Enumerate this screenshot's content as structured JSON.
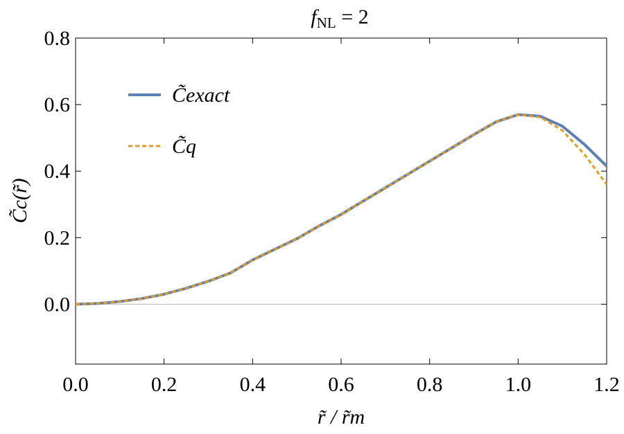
{
  "chart_data": {
    "type": "line",
    "title": [
      "f",
      "NL",
      " = 2"
    ],
    "xlabel": "r̃ / r̃m",
    "ylabel": "C̃c(r̃)",
    "x": [
      0,
      0.05,
      0.1,
      0.15,
      0.2,
      0.25,
      0.3,
      0.35,
      0.4,
      0.45,
      0.5,
      0.55,
      0.6,
      0.65,
      0.7,
      0.75,
      0.8,
      0.85,
      0.9,
      0.95,
      1.0,
      1.05,
      1.1,
      1.15,
      1.2
    ],
    "series": [
      {
        "name": "C̃exact",
        "color": "#5e81b5",
        "dash": false,
        "values": [
          0,
          0.002,
          0.008,
          0.017,
          0.03,
          0.048,
          0.069,
          0.094,
          0.133,
          0.165,
          0.197,
          0.235,
          0.27,
          0.31,
          0.35,
          0.39,
          0.43,
          0.47,
          0.51,
          0.548,
          0.57,
          0.565,
          0.535,
          0.48,
          0.415
        ]
      },
      {
        "name": "C̃q",
        "color": "#e19c24",
        "dash": true,
        "values": [
          0,
          0.002,
          0.008,
          0.017,
          0.03,
          0.048,
          0.069,
          0.094,
          0.133,
          0.165,
          0.197,
          0.235,
          0.27,
          0.31,
          0.35,
          0.39,
          0.43,
          0.47,
          0.51,
          0.548,
          0.57,
          0.562,
          0.522,
          0.45,
          0.36
        ]
      }
    ],
    "xlim": [
      0,
      1.2
    ],
    "xticks": [
      {
        "value": 0,
        "label": "0.0"
      },
      0.2,
      0.4,
      0.6,
      0.8,
      {
        "value": 1,
        "label": "1.0"
      },
      1.2
    ],
    "ylim": [
      -0.18,
      0.8
    ],
    "yticks": [
      {
        "value": 0,
        "label": "0.0"
      },
      0.2,
      0.4,
      0.6,
      0.8
    ],
    "legend": "upper-left"
  }
}
